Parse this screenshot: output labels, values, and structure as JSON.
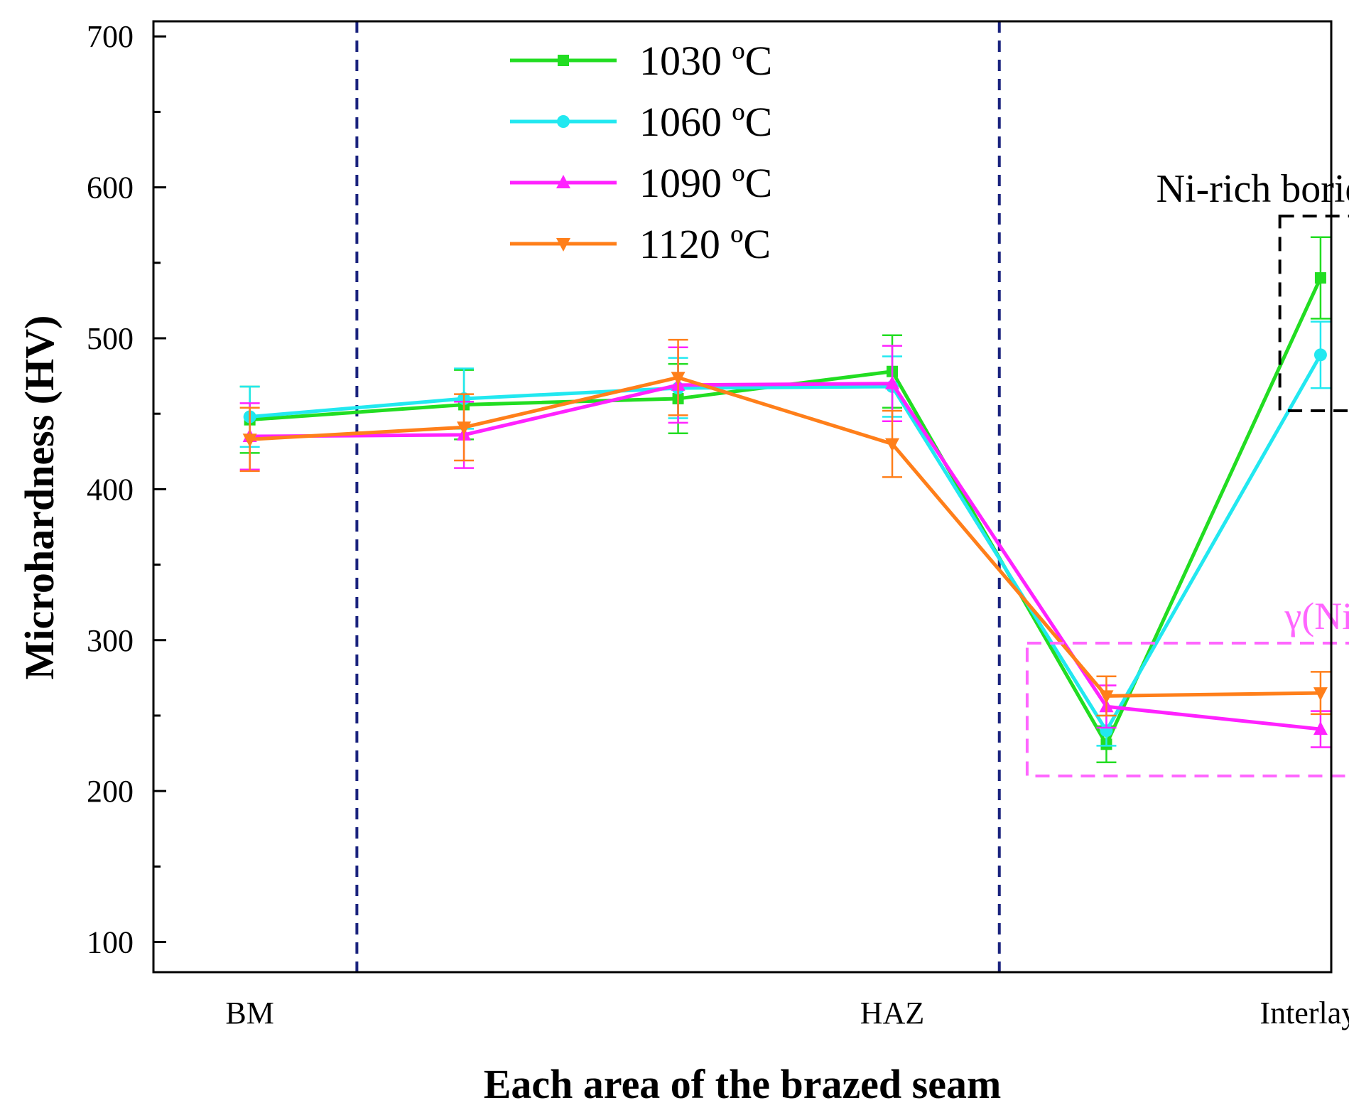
{
  "chart_data": {
    "type": "line",
    "title": "",
    "xlabel": "Each area of the brazed seam",
    "ylabel": "Microhardness  (HV)",
    "ylim": [
      80,
      710
    ],
    "yticks": [
      100,
      200,
      300,
      400,
      500,
      600,
      700
    ],
    "xlim": [
      0.55,
      6.05
    ],
    "x": [
      1,
      2,
      3,
      4,
      5,
      6
    ],
    "x_tick_labels": [
      {
        "x": 1,
        "label": "BM"
      },
      {
        "x": 4,
        "label": "HAZ"
      },
      {
        "x": 6,
        "label": "Interlayer"
      }
    ],
    "boundaries": [
      1.5,
      4.5
    ],
    "series": [
      {
        "name": "1030 ºC",
        "color": "#22dd22",
        "marker": "square",
        "values": [
          446,
          456,
          460,
          478,
          231,
          540
        ],
        "errors": [
          22,
          23,
          23,
          24,
          12,
          27
        ]
      },
      {
        "name": "1060 ºC",
        "color": "#22e8f0",
        "marker": "circle",
        "values": [
          448,
          460,
          467,
          468,
          240,
          489
        ],
        "errors": [
          20,
          20,
          20,
          20,
          10,
          22
        ]
      },
      {
        "name": "1090 ºC",
        "color": "#ff22ff",
        "marker": "triangle-up",
        "values": [
          435,
          436,
          469,
          470,
          256,
          241
        ],
        "errors": [
          22,
          22,
          25,
          25,
          14,
          12
        ]
      },
      {
        "name": "1120 ºC",
        "color": "#ff7f1a",
        "marker": "triangle-down",
        "values": [
          433,
          441,
          474,
          430,
          263,
          265
        ],
        "errors": [
          21,
          22,
          25,
          22,
          13,
          14
        ]
      }
    ],
    "annotations": [
      {
        "text": "Ni-rich boride",
        "color": "#000000",
        "box_color": "#000000",
        "x_range": [
          5.81,
          6.31
        ],
        "y_range": [
          452,
          581
        ]
      },
      {
        "text": "γ(Ni)",
        "color": "#ff66ff",
        "box_color": "#ff66ff",
        "x_range": [
          4.63,
          6.23
        ],
        "y_range": [
          210,
          298
        ]
      }
    ],
    "legend_position": "top-center"
  }
}
